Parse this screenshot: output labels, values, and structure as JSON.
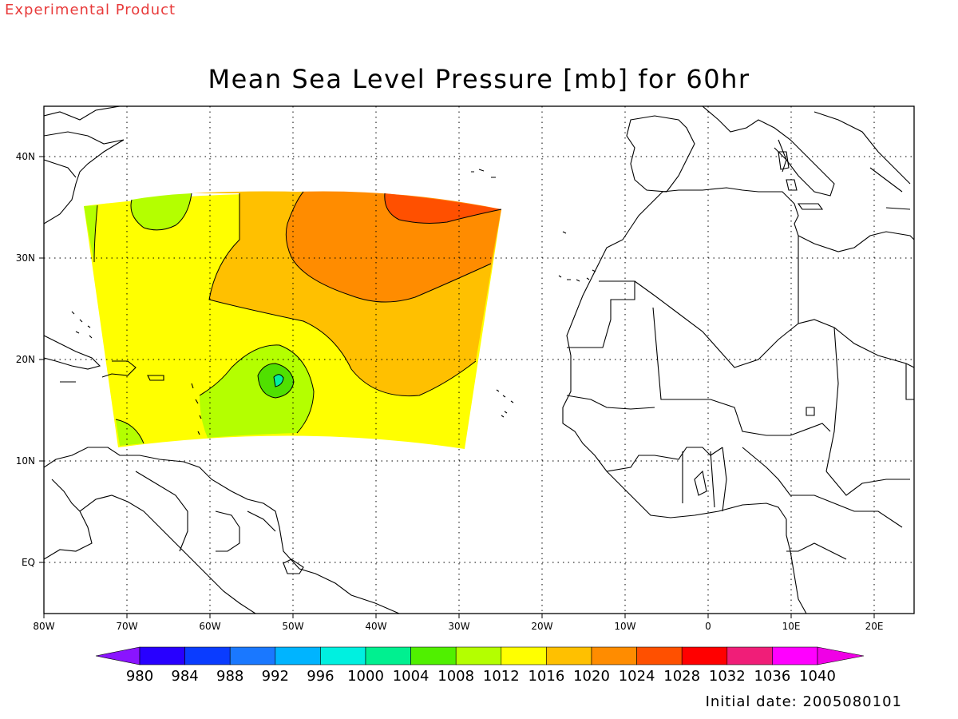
{
  "header": {
    "experimental": "Experimental Product",
    "title": "Mean Sea Level Pressure [mb] for 60hr"
  },
  "footer": {
    "initial_date": "Initial date: 2005080101"
  },
  "axes": {
    "lon_labels": [
      "80W",
      "70W",
      "60W",
      "50W",
      "40W",
      "30W",
      "20W",
      "10W",
      "0",
      "10E",
      "20E"
    ],
    "lat_labels": [
      "40N",
      "30N",
      "20N",
      "10N",
      "EQ"
    ],
    "lon_range": [
      -80,
      25
    ],
    "lat_range": [
      -5,
      45
    ]
  },
  "colorbar": {
    "labels": [
      "980",
      "984",
      "988",
      "992",
      "996",
      "1000",
      "1004",
      "1008",
      "1012",
      "1016",
      "1020",
      "1024",
      "1028",
      "1032",
      "1036",
      "1040"
    ],
    "colors": [
      "#8a14ff",
      "#2800ff",
      "#0a3cff",
      "#1a78ff",
      "#00b4ff",
      "#00f0e0",
      "#00f090",
      "#50f000",
      "#b4ff00",
      "#ffff00",
      "#ffc000",
      "#ff8c00",
      "#ff5000",
      "#ff0000",
      "#f01e78",
      "#ff00ff",
      "#f000e6"
    ]
  },
  "map_colors": {
    "f1008": "#b4ff00",
    "f1004": "#50e000",
    "f1012": "#ffff00",
    "f1016": "#ffc000",
    "f1020": "#ff8c00",
    "f1024": "#ff5000"
  }
}
